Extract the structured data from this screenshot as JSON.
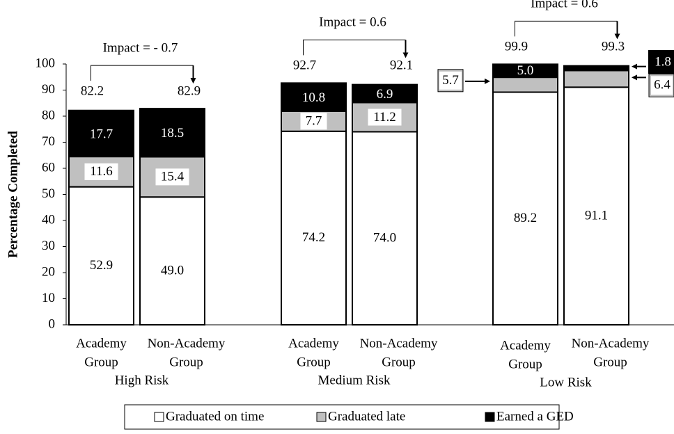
{
  "chart_data": {
    "type": "bar",
    "stacked": true,
    "ylabel": "Percentage Completed",
    "ylim": [
      0,
      100
    ],
    "yticks": [
      "0",
      "10",
      "20",
      "30",
      "40",
      "50",
      "60",
      "70",
      "80",
      "90",
      "100"
    ],
    "groups": [
      {
        "name": "High Risk",
        "impact_label": "Impact = - 0.7",
        "bars": [
          {
            "line1": "Academy",
            "line2": "Group",
            "values": [
              52.9,
              11.6,
              17.7
            ],
            "labels": [
              "52.9",
              "11.6",
              "17.7"
            ],
            "total": "82.2"
          },
          {
            "line1": "Non-Academy",
            "line2": "Group",
            "values": [
              49.0,
              15.4,
              18.5
            ],
            "labels": [
              "49.0",
              "15.4",
              "18.5"
            ],
            "total": "82.9"
          }
        ]
      },
      {
        "name": "Medium Risk",
        "impact_label": "Impact = 0.6",
        "bars": [
          {
            "line1": "Academy",
            "line2": "Group",
            "values": [
              74.2,
              7.7,
              10.8
            ],
            "labels": [
              "74.2",
              "7.7",
              "10.8"
            ],
            "total": "92.7"
          },
          {
            "line1": "Non-Academy",
            "line2": "Group",
            "values": [
              74.0,
              11.2,
              6.9
            ],
            "labels": [
              "74.0",
              "11.2",
              "6.9"
            ],
            "total": "92.1"
          }
        ]
      },
      {
        "name": "Low Risk",
        "impact_label": "Impact = 0.6",
        "bars": [
          {
            "line1": "Academy",
            "line2": "Group",
            "values": [
              89.2,
              5.7,
              5.0
            ],
            "labels": [
              "89.2",
              "5.7",
              "5.0"
            ],
            "total": "99.9"
          },
          {
            "line1": "Non-Academy",
            "line2": "Group",
            "values": [
              91.1,
              6.4,
              1.8
            ],
            "labels": [
              "91.1",
              "6.4",
              "1.8"
            ],
            "total": "99.3"
          }
        ]
      }
    ],
    "series": [
      {
        "name": "Graduated on time",
        "color": "#ffffff"
      },
      {
        "name": "Graduated late",
        "color": "#c0c0c0"
      },
      {
        "name": "Earned a GED",
        "color": "#000000"
      }
    ],
    "legend_position": "bottom"
  }
}
